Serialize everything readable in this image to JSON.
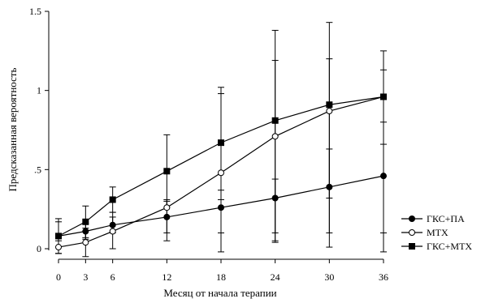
{
  "chart_data": {
    "type": "line",
    "title": "",
    "xlabel": "Месяц от начала терапии",
    "ylabel": "Предсказанная вероятность",
    "x": [
      0,
      3,
      6,
      12,
      18,
      24,
      30,
      36
    ],
    "x_tick_labels": [
      "0",
      "3",
      "6",
      "12",
      "18",
      "24",
      "30",
      "36"
    ],
    "ylim": [
      0,
      1.5
    ],
    "y_ticks": [
      0,
      0.5,
      1,
      1.5
    ],
    "y_tick_labels": [
      "0",
      ".5",
      "1",
      "1.5"
    ],
    "grid": false,
    "legend_position": "right",
    "error_bars": true,
    "series": [
      {
        "name": "ГКС+ПА",
        "marker": "filled-circle",
        "values": [
          0.08,
          0.11,
          0.15,
          0.2,
          0.26,
          0.32,
          0.39,
          0.46
        ],
        "lower": [
          -0.03,
          0.06,
          0.1,
          0.1,
          0.1,
          0.1,
          0.1,
          0.1
        ],
        "upper": [
          0.19,
          0.16,
          0.2,
          0.31,
          0.37,
          0.44,
          0.63,
          0.8
        ]
      },
      {
        "name": "MTX",
        "marker": "open-circle",
        "values": [
          0.01,
          0.04,
          0.11,
          0.26,
          0.48,
          0.71,
          0.87,
          0.96
        ],
        "lower": [
          -0.03,
          -0.05,
          0.0,
          0.05,
          -0.02,
          0.04,
          0.01,
          -0.02
        ],
        "upper": [
          0.05,
          0.13,
          0.23,
          0.3,
          0.98,
          1.19,
          1.2,
          1.13
        ]
      },
      {
        "name": "ГКС+MTX",
        "marker": "filled-square",
        "values": [
          0.08,
          0.17,
          0.31,
          0.49,
          0.67,
          0.81,
          0.91,
          0.96
        ],
        "lower": [
          -0.03,
          0.07,
          0.23,
          0.26,
          0.31,
          0.05,
          0.32,
          0.66
        ],
        "upper": [
          0.17,
          0.27,
          0.39,
          0.72,
          1.02,
          1.38,
          1.43,
          1.25
        ]
      }
    ]
  }
}
